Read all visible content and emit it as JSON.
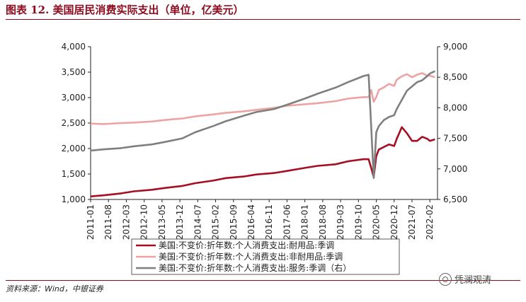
{
  "title": "图表 12. 美国居民消费实际支出（单位，亿美元）",
  "source": "资料来源：Wind，中银证券",
  "watermark": "凭澜观涛",
  "colors": {
    "durable": "#a50f24",
    "nondurable": "#eea3a3",
    "services": "#7f7f7f",
    "title": "#8c0a1e"
  },
  "chart_data": {
    "type": "line",
    "title": "",
    "y_left": {
      "min": 1000,
      "max": 4000,
      "ticks": [
        "1,000",
        "1,500",
        "2,000",
        "2,500",
        "3,000",
        "3,500",
        "4,000"
      ]
    },
    "y_right": {
      "min": 6500,
      "max": 9000,
      "ticks": [
        "6,500",
        "7,000",
        "7,500",
        "8,000",
        "8,500",
        "9,000"
      ]
    },
    "x_ticks": [
      "2011-01",
      "2011-08",
      "2012-03",
      "2012-10",
      "2013-05",
      "2013-12",
      "2014-07",
      "2015-02",
      "2015-09",
      "2016-04",
      "2016-11",
      "2017-06",
      "2018-01",
      "2018-08",
      "2019-03",
      "2019-10",
      "2020-05",
      "2020-12",
      "2021-07",
      "2022-02"
    ],
    "legend_position": "bottom",
    "series": [
      {
        "name": "美国:不变价:折年数:个人消费支出:耐用品:季调",
        "axis": "left",
        "x": [
          "2011-01",
          "2011-06",
          "2012-01",
          "2012-06",
          "2013-01",
          "2013-06",
          "2014-01",
          "2014-06",
          "2015-01",
          "2015-06",
          "2016-01",
          "2016-06",
          "2017-01",
          "2017-06",
          "2018-01",
          "2018-06",
          "2019-01",
          "2019-06",
          "2019-12",
          "2020-02",
          "2020-03",
          "2020-04",
          "2020-05",
          "2020-06",
          "2020-08",
          "2020-10",
          "2020-12",
          "2021-01",
          "2021-03",
          "2021-05",
          "2021-07",
          "2021-09",
          "2021-11",
          "2022-01",
          "2022-02",
          "2022-04"
        ],
        "values": [
          1060,
          1080,
          1120,
          1160,
          1190,
          1225,
          1265,
          1320,
          1370,
          1420,
          1450,
          1490,
          1520,
          1560,
          1620,
          1660,
          1690,
          1750,
          1790,
          1790,
          1620,
          1440,
          1850,
          1980,
          2030,
          2080,
          2050,
          2190,
          2420,
          2300,
          2150,
          2150,
          2230,
          2190,
          2150,
          2180
        ]
      },
      {
        "name": "美国:不变价:折年数:个人消费支出:非耐用品:季调",
        "axis": "left",
        "x": [
          "2011-01",
          "2011-06",
          "2012-01",
          "2012-06",
          "2013-01",
          "2013-06",
          "2014-01",
          "2014-06",
          "2015-01",
          "2015-06",
          "2016-01",
          "2016-06",
          "2017-01",
          "2017-06",
          "2018-01",
          "2018-06",
          "2019-01",
          "2019-06",
          "2019-12",
          "2020-02",
          "2020-03",
          "2020-04",
          "2020-05",
          "2020-06",
          "2020-08",
          "2020-10",
          "2020-12",
          "2021-01",
          "2021-03",
          "2021-05",
          "2021-07",
          "2021-09",
          "2021-11",
          "2022-01",
          "2022-02",
          "2022-04"
        ],
        "values": [
          2490,
          2480,
          2500,
          2510,
          2530,
          2560,
          2590,
          2630,
          2670,
          2700,
          2730,
          2760,
          2800,
          2840,
          2870,
          2890,
          2930,
          2980,
          3010,
          3010,
          3150,
          2920,
          3010,
          3150,
          3200,
          3270,
          3230,
          3350,
          3420,
          3460,
          3400,
          3450,
          3480,
          3430,
          3430,
          3400
        ]
      },
      {
        "name": "美国:不变价:折年数:个人消费支出:服务:季调（右）",
        "axis": "right",
        "x": [
          "2011-01",
          "2011-06",
          "2012-01",
          "2012-06",
          "2013-01",
          "2013-06",
          "2014-01",
          "2014-06",
          "2015-01",
          "2015-06",
          "2016-01",
          "2016-06",
          "2017-01",
          "2017-06",
          "2018-01",
          "2018-06",
          "2019-01",
          "2019-06",
          "2019-12",
          "2020-02",
          "2020-03",
          "2020-04",
          "2020-05",
          "2020-06",
          "2020-08",
          "2020-10",
          "2020-12",
          "2021-01",
          "2021-03",
          "2021-05",
          "2021-07",
          "2021-09",
          "2021-11",
          "2022-01",
          "2022-02",
          "2022-04"
        ],
        "values": [
          7300,
          7320,
          7340,
          7370,
          7400,
          7440,
          7500,
          7600,
          7700,
          7780,
          7870,
          7930,
          7980,
          8050,
          8150,
          8230,
          8330,
          8420,
          8520,
          8540,
          7700,
          6850,
          7600,
          7700,
          7800,
          7850,
          7880,
          7980,
          8130,
          8280,
          8350,
          8420,
          8450,
          8520,
          8560,
          8600
        ]
      }
    ]
  }
}
